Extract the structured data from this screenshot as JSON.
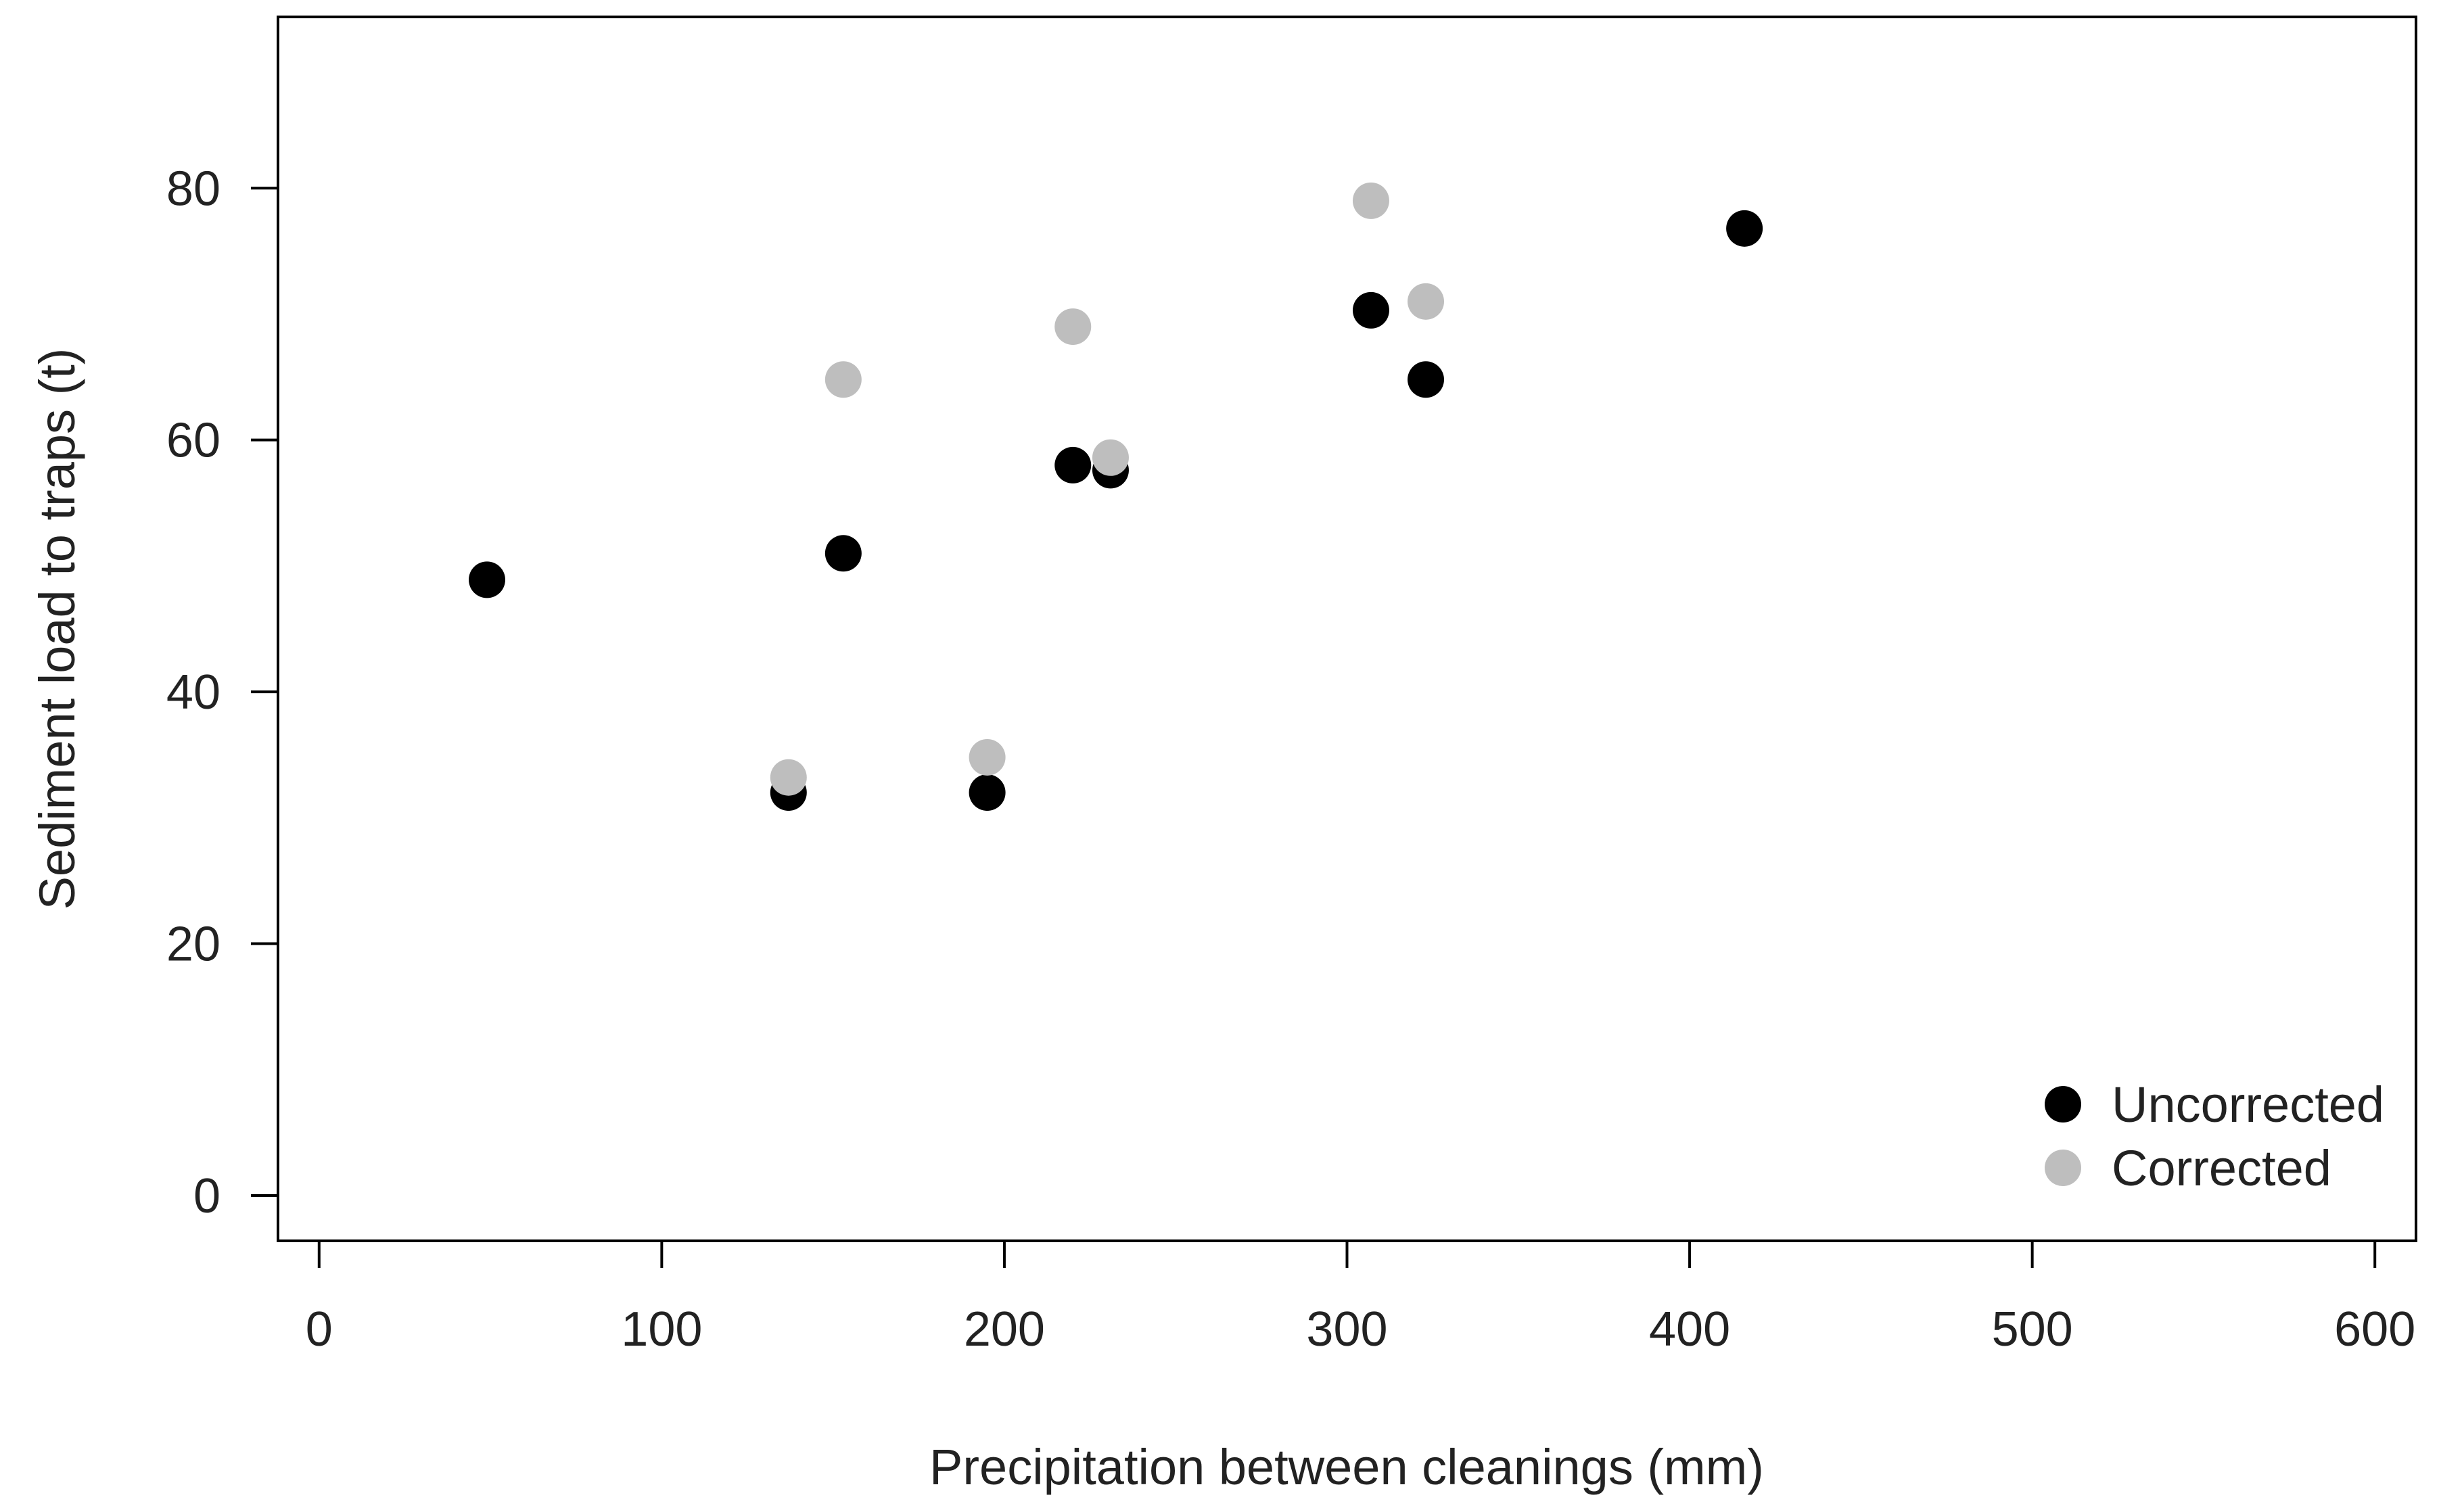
{
  "chart_data": {
    "type": "scatter",
    "title": "",
    "xlabel": "Precipitation between cleanings (mm)",
    "ylabel": "Sediment load to traps (t)",
    "xlim": [
      -12,
      612
    ],
    "ylim": [
      -3.6,
      93.6
    ],
    "x_ticks": [
      0,
      100,
      200,
      300,
      400,
      500,
      600
    ],
    "x_tick_labels": [
      "0",
      "100",
      "200",
      "300",
      "400",
      "500",
      "600"
    ],
    "y_ticks": [
      0,
      20,
      40,
      60,
      80
    ],
    "y_tick_labels": [
      "0",
      "20",
      "40",
      "60",
      "80"
    ],
    "grid": false,
    "legend_position": "bottom-right",
    "series": [
      {
        "name": "Uncorrected",
        "color": "#000000",
        "points": [
          {
            "x": 49,
            "y": 48.9
          },
          {
            "x": 137,
            "y": 32.0
          },
          {
            "x": 153,
            "y": 51.0
          },
          {
            "x": 195,
            "y": 32.0
          },
          {
            "x": 220,
            "y": 58.0
          },
          {
            "x": 231,
            "y": 57.6
          },
          {
            "x": 307,
            "y": 70.3
          },
          {
            "x": 323,
            "y": 64.8
          },
          {
            "x": 416,
            "y": 76.8
          }
        ]
      },
      {
        "name": "Corrected",
        "color": "#bebebe",
        "points": [
          {
            "x": 137,
            "y": 33.2
          },
          {
            "x": 153,
            "y": 64.8
          },
          {
            "x": 195,
            "y": 34.8
          },
          {
            "x": 220,
            "y": 69.0
          },
          {
            "x": 231,
            "y": 58.6
          },
          {
            "x": 307,
            "y": 79.0
          },
          {
            "x": 323,
            "y": 71.0
          }
        ]
      }
    ]
  }
}
